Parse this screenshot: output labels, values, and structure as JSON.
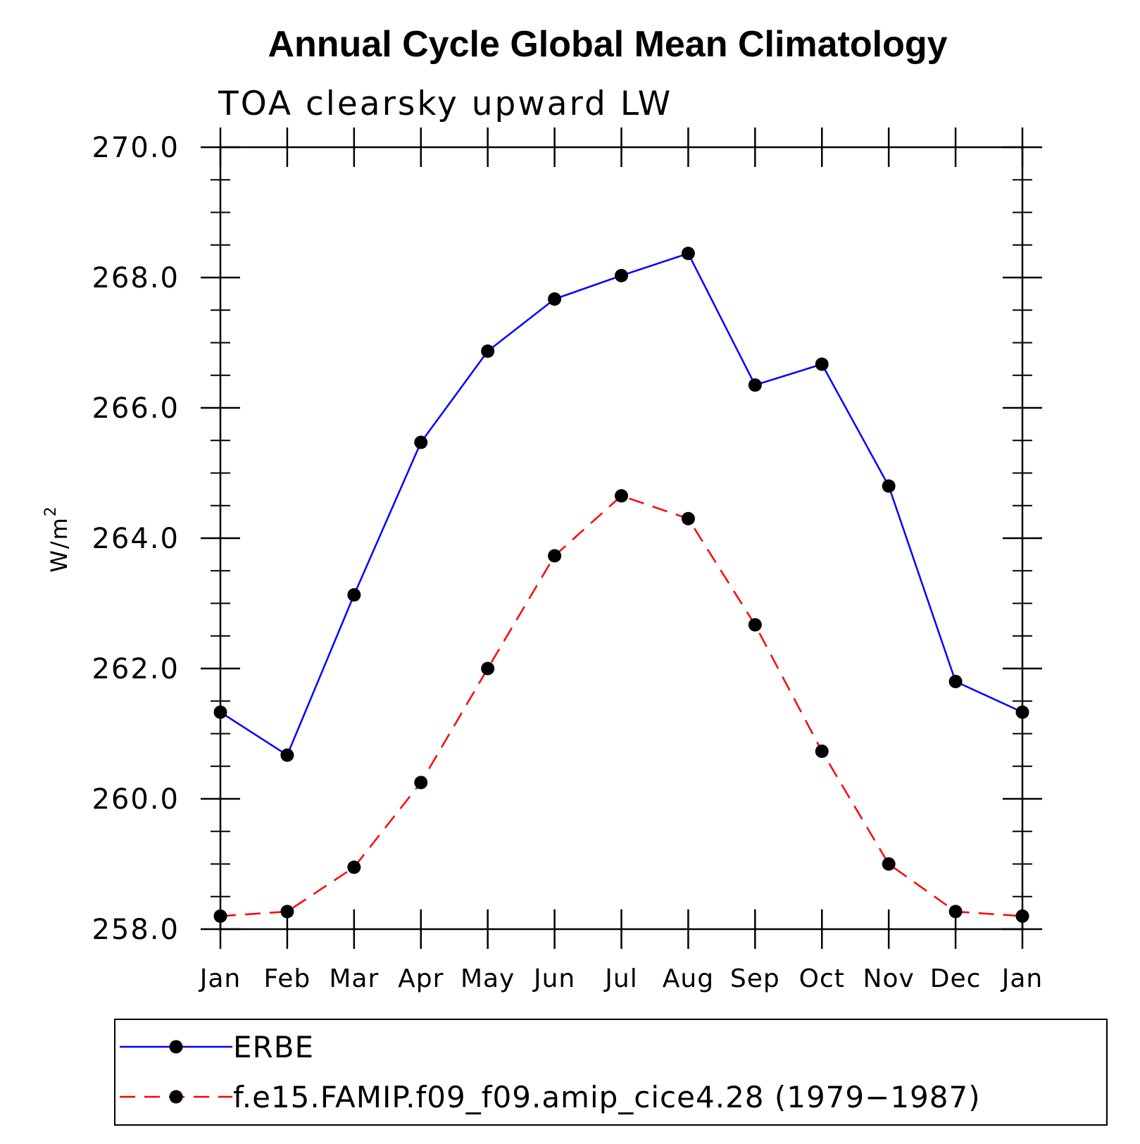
{
  "chart_data": {
    "type": "line",
    "title": "Annual Cycle Global Mean Climatology",
    "subtitle": "TOA clearsky upward LW",
    "ylabel": "W/m",
    "ylabel_sup": "2",
    "categories": [
      "Jan",
      "Feb",
      "Mar",
      "Apr",
      "May",
      "Jun",
      "Jul",
      "Aug",
      "Sep",
      "Oct",
      "Nov",
      "Dec",
      "Jan"
    ],
    "ylim": [
      258.0,
      270.0
    ],
    "yticks": [
      "258.0",
      "260.0",
      "262.0",
      "264.0",
      "266.0",
      "268.0",
      "270.0"
    ],
    "yticks_values": [
      258,
      260,
      262,
      264,
      266,
      268,
      270
    ],
    "series": [
      {
        "name": "ERBE",
        "color": "#0000ff",
        "dash": "solid",
        "values": [
          261.33,
          260.67,
          263.13,
          265.47,
          266.87,
          267.67,
          268.03,
          268.37,
          266.35,
          266.67,
          264.8,
          261.8,
          261.33
        ]
      },
      {
        "name": "f.e15.FAMIP.f09_f09.amip_cice4.28 (1979−1987)",
        "color": "#ff0000",
        "dash": "dashed",
        "values": [
          258.2,
          258.27,
          258.95,
          260.25,
          262.0,
          263.73,
          264.65,
          264.3,
          262.67,
          260.73,
          259.0,
          258.27,
          258.2
        ]
      }
    ],
    "marker": "filled-circle",
    "grid": false,
    "legend_position": "bottom"
  }
}
